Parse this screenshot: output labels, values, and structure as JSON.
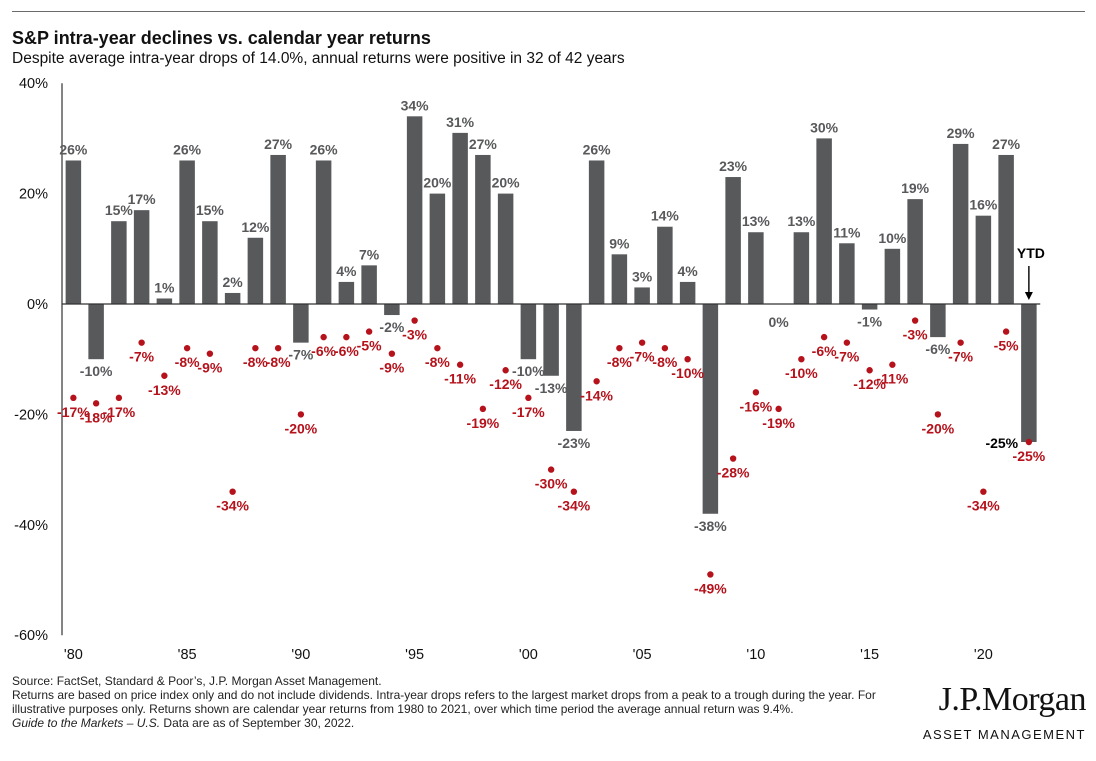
{
  "header": {
    "title": "S&P intra-year declines vs. calendar year returns",
    "subtitle": "Despite average intra-year drops of 14.0%, annual returns were positive in 32 of 42 years"
  },
  "chart_data": {
    "type": "bar",
    "title": "S&P intra-year declines vs. calendar year returns",
    "x": [
      1980,
      1981,
      1982,
      1983,
      1984,
      1985,
      1986,
      1987,
      1988,
      1989,
      1990,
      1991,
      1992,
      1993,
      1994,
      1995,
      1996,
      1997,
      1998,
      1999,
      2000,
      2001,
      2002,
      2003,
      2004,
      2005,
      2006,
      2007,
      2008,
      2009,
      2010,
      2011,
      2012,
      2013,
      2014,
      2015,
      2016,
      2017,
      2018,
      2019,
      2020,
      2021,
      2022
    ],
    "xtick_labels": [
      {
        "year": 1980,
        "label": "'80"
      },
      {
        "year": 1985,
        "label": "'85"
      },
      {
        "year": 1990,
        "label": "'90"
      },
      {
        "year": 1995,
        "label": "'95"
      },
      {
        "year": 2000,
        "label": "'00"
      },
      {
        "year": 2005,
        "label": "'05"
      },
      {
        "year": 2010,
        "label": "'10"
      },
      {
        "year": 2015,
        "label": "'15"
      },
      {
        "year": 2020,
        "label": "'20"
      }
    ],
    "yticks": [
      40,
      20,
      0,
      -20,
      -40,
      -60
    ],
    "ytick_labels": [
      "40%",
      "20%",
      "0%",
      "-20%",
      "-40%",
      "-60%"
    ],
    "ylim": [
      -60,
      40
    ],
    "grid": false,
    "series": [
      {
        "kind": "bar",
        "color": "#58595b",
        "values": [
          26,
          -10,
          15,
          17,
          1,
          26,
          15,
          2,
          12,
          27,
          -7,
          26,
          4,
          7,
          -2,
          34,
          20,
          31,
          27,
          20,
          -10,
          -13,
          -23,
          26,
          9,
          3,
          14,
          4,
          -38,
          23,
          13,
          0,
          13,
          30,
          11,
          -1,
          10,
          19,
          -6,
          29,
          16,
          27,
          -25
        ],
        "labels": [
          "26%",
          "-10%",
          "15%",
          "17%",
          "1%",
          "26%",
          "15%",
          "2%",
          "12%",
          "27%",
          "-7%",
          "26%",
          "4%",
          "7%",
          "-2%",
          "34%",
          "20%",
          "31%",
          "27%",
          "20%",
          "-10%",
          "-13%",
          "-23%",
          "26%",
          "9%",
          "3%",
          "14%",
          "4%",
          "-38%",
          "23%",
          "13%",
          "0%",
          "13%",
          "30%",
          "11%",
          "-1%",
          "10%",
          "19%",
          "-6%",
          "29%",
          "16%",
          "27%",
          "-25%"
        ]
      },
      {
        "kind": "scatter",
        "color": "#b5121b",
        "values": [
          -17,
          -18,
          -17,
          -7,
          -13,
          -8,
          -9,
          -34,
          -8,
          -8,
          -20,
          -6,
          -6,
          -5,
          -9,
          -3,
          -8,
          -11,
          -19,
          -12,
          -17,
          -30,
          -34,
          -14,
          -8,
          -7,
          -8,
          -10,
          -49,
          -28,
          -16,
          -19,
          -10,
          -6,
          -7,
          -12,
          -11,
          -3,
          -20,
          -7,
          -34,
          -5,
          -25
        ],
        "labels": [
          "-17%",
          "-18%",
          "-17%",
          "-7%",
          "-13%",
          "-8%",
          "-9%",
          "-34%",
          "-8%",
          "-8%",
          "-20%",
          "-6%",
          "-6%",
          "-5%",
          "-9%",
          "-3%",
          "-8%",
          "-11%",
          "-19%",
          "-12%",
          "-17%",
          "-30%",
          "-34%",
          "-14%",
          "-8%",
          "-7%",
          "-8%",
          "-10%",
          "-49%",
          "-28%",
          "-16%",
          "-19%",
          "-10%",
          "-6%",
          "-7%",
          "-12%",
          "-11%",
          "-3%",
          "-20%",
          "-7%",
          "-34%",
          "-5%",
          "-25%"
        ]
      }
    ],
    "annotations": [
      {
        "text": "YTD",
        "year": 2022,
        "arrow": "down"
      }
    ]
  },
  "footer": {
    "source": "Source: FactSet, Standard & Poor’s, J.P. Morgan Asset Management.",
    "note": "Returns are based on price index only and do not include dividends. Intra-year drops refers to the largest market drops from a peak to a trough during the year. For illustrative purposes only. Returns shown are calendar year returns from 1980 to 2021, over which time period the average annual return was 9.4%.",
    "guide": "Guide to the Markets – U.S.",
    "asof": " Data are as of September 30, 2022."
  },
  "logo": {
    "name": "J.P.Morgan",
    "sub": "ASSET MANAGEMENT"
  }
}
